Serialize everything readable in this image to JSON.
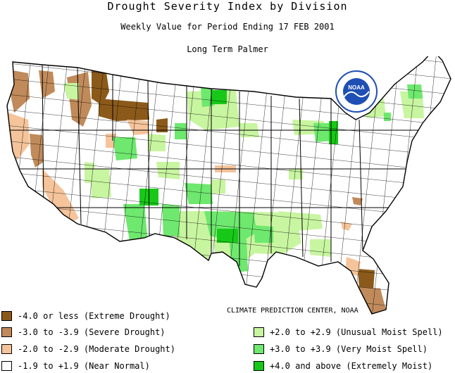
{
  "title": "Drought Severity Index by Division",
  "subtitle": "Weekly Value for Period Ending 17 FEB 2001",
  "index_name": "Long Term Palmer",
  "logo_text": "NOAA",
  "credit": "CLIMATE PREDICTION CENTER, NOAA",
  "colors": {
    "extreme_drought": "#8b5a1a",
    "severe_drought": "#c08a5a",
    "moderate_drought": "#f5c49b",
    "near_normal": "#ffffff",
    "unusual_moist": "#c8f5a0",
    "very_moist": "#6ee86e",
    "extremely_moist": "#18c818",
    "border": "#000000",
    "noaa_blue": "#1f4fb4"
  },
  "legend": [
    {
      "label": "-4.0 or less (Extreme Drought)",
      "color": "#8b5a1a"
    },
    {
      "label": "-3.0 to -3.9 (Severe Drought)",
      "color": "#c08a5a"
    },
    {
      "label": "-2.0 to -2.9 (Moderate Drought)",
      "color": "#f5c49b"
    },
    {
      "label": "-1.9 to +1.9 (Near Normal)",
      "color": "#ffffff"
    },
    {
      "label": "+2.0 to +2.9 (Unusual Moist Spell)",
      "color": "#c8f5a0"
    },
    {
      "label": "+3.0 to +3.9 (Very Moist Spell)",
      "color": "#6ee86e"
    },
    {
      "label": "+4.0 and above (Extremely Moist)",
      "color": "#18c818"
    }
  ]
}
